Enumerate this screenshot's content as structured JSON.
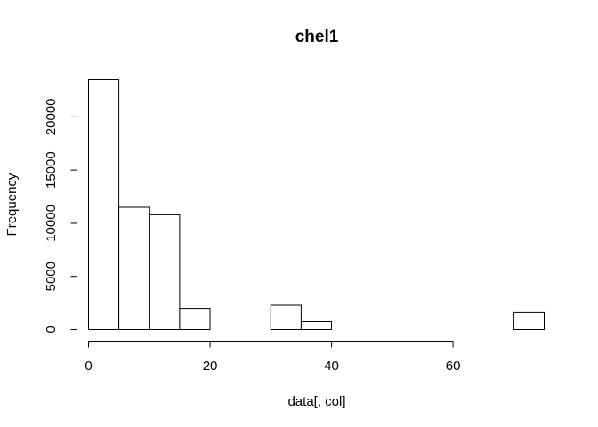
{
  "chart_data": {
    "type": "bar",
    "subtype": "histogram",
    "title": "chel1",
    "xlabel": "data[, col]",
    "ylabel": "Frequency",
    "bin_edges": [
      0,
      5,
      10,
      15,
      20,
      25,
      30,
      35,
      40,
      45,
      50,
      55,
      60,
      65,
      70,
      75
    ],
    "values": [
      23500,
      11500,
      10800,
      2000,
      0,
      0,
      2300,
      750,
      0,
      0,
      0,
      0,
      0,
      0,
      1600
    ],
    "xlim": [
      0,
      75
    ],
    "ylim": [
      0,
      23500
    ],
    "x_ticks": [
      0,
      20,
      40,
      60
    ],
    "x_tick_labels": [
      "0",
      "20",
      "40",
      "60"
    ],
    "y_ticks": [
      0,
      5000,
      10000,
      15000,
      20000
    ],
    "y_tick_labels": [
      "0",
      "5000",
      "10000",
      "15000",
      "20000"
    ],
    "grid": false,
    "legend": "none",
    "bar_fill": "#ffffff",
    "bar_stroke": "#000000"
  }
}
